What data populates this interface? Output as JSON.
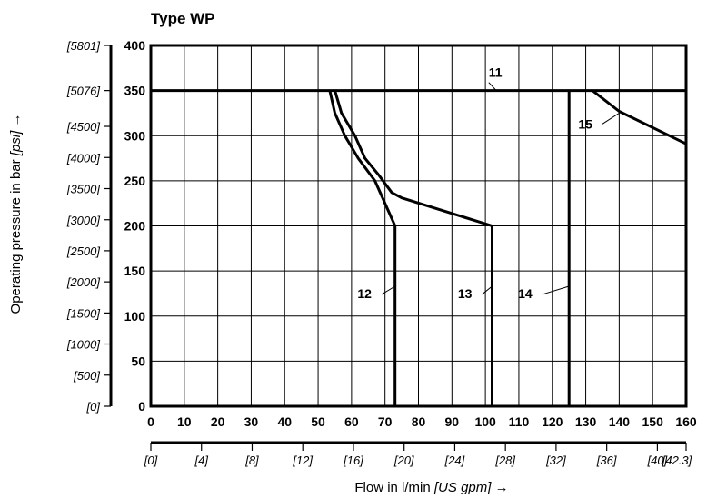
{
  "chart_data": {
    "type": "line",
    "title": "Type WP",
    "xlabel": {
      "main": "Flow in l/min ",
      "unit": "[US gpm]",
      "arrow": " →"
    },
    "ylabel": {
      "main": "Operating pressure in bar ",
      "unit": "[psi]",
      "arrow": " →"
    },
    "xlim": [
      0,
      160
    ],
    "ylim": [
      0,
      400
    ],
    "grid": true,
    "x_ticks": [
      "0",
      "10",
      "20",
      "30",
      "40",
      "50",
      "60",
      "70",
      "80",
      "90",
      "100",
      "110",
      "120",
      "130",
      "140",
      "150",
      "160"
    ],
    "y_ticks": [
      "0",
      "50",
      "100",
      "150",
      "200",
      "250",
      "300",
      "350",
      "400"
    ],
    "x_secondary_ticks": [
      {
        "label": "[0]",
        "value": 0
      },
      {
        "label": "[4]",
        "value": 15.14
      },
      {
        "label": "[8]",
        "value": 30.28
      },
      {
        "label": "[12]",
        "value": 45.42
      },
      {
        "label": "[16]",
        "value": 60.57
      },
      {
        "label": "[20]",
        "value": 75.71
      },
      {
        "label": "[24]",
        "value": 90.85
      },
      {
        "label": "[28]",
        "value": 105.99
      },
      {
        "label": "[32]",
        "value": 121.13
      },
      {
        "label": "[36]",
        "value": 136.27
      },
      {
        "label": "[40]",
        "value": 151.42
      },
      {
        "label": "[42.3]",
        "value": 160
      }
    ],
    "y_secondary_ticks": [
      {
        "label": "[0]",
        "value": 0
      },
      {
        "label": "[500]",
        "value": 34.5
      },
      {
        "label": "[1000]",
        "value": 69
      },
      {
        "label": "[1500]",
        "value": 103.4
      },
      {
        "label": "[2000]",
        "value": 137.9
      },
      {
        "label": "[2500]",
        "value": 172.4
      },
      {
        "label": "[3000]",
        "value": 206.8
      },
      {
        "label": "[3500]",
        "value": 241.3
      },
      {
        "label": "[4000]",
        "value": 275.8
      },
      {
        "label": "[4500]",
        "value": 310.3
      },
      {
        "label": "[5076]",
        "value": 350
      },
      {
        "label": "[5801]",
        "value": 400
      }
    ],
    "series": [
      {
        "name": "11",
        "points": [
          [
            0,
            350
          ],
          [
            160,
            350
          ]
        ],
        "label_at": [
          105,
          365
        ],
        "leader": [
          [
            101,
            359
          ],
          [
            103,
            351
          ]
        ]
      },
      {
        "name": "12",
        "points": [
          [
            53.5,
            350
          ],
          [
            55,
            325
          ],
          [
            58,
            300
          ],
          [
            62,
            275
          ],
          [
            67,
            250
          ],
          [
            70,
            225
          ],
          [
            73,
            200
          ],
          [
            73,
            0
          ]
        ],
        "label_at": [
          66,
          120
        ],
        "leader": [
          [
            69,
            124
          ],
          [
            73,
            133
          ]
        ]
      },
      {
        "name": "13",
        "points": [
          [
            55,
            350
          ],
          [
            57,
            325
          ],
          [
            61,
            300
          ],
          [
            64,
            275
          ],
          [
            68,
            257
          ],
          [
            72,
            237
          ],
          [
            75,
            231
          ],
          [
            102,
            200
          ],
          [
            102,
            0
          ]
        ],
        "label_at": [
          96,
          120
        ],
        "leader": [
          [
            99,
            124
          ],
          [
            102,
            133
          ]
        ]
      },
      {
        "name": "14",
        "points": [
          [
            125,
            350
          ],
          [
            125,
            0
          ]
        ],
        "label_at": [
          114,
          120
        ],
        "leader": [
          [
            117,
            124
          ],
          [
            125,
            133
          ]
        ]
      },
      {
        "name": "15",
        "points": [
          [
            132,
            350
          ],
          [
            140,
            327
          ],
          [
            160,
            291
          ]
        ],
        "label_at": [
          132,
          308
        ],
        "leader": [
          [
            135,
            313
          ],
          [
            140,
            325
          ]
        ]
      }
    ]
  }
}
